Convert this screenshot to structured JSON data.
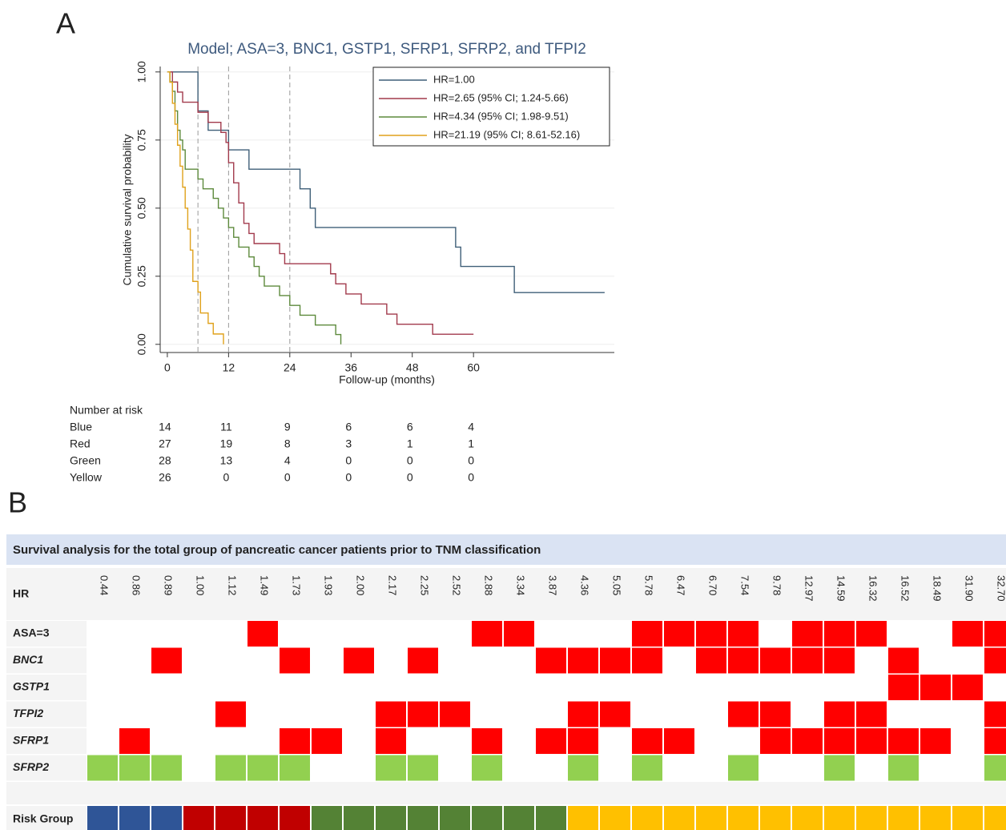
{
  "panel_labels": [
    "A",
    "B"
  ],
  "chart_data": {
    "type": "line",
    "step": true,
    "title": "Model; ASA=3, BNC1, GSTP1, SFRP1, SFRP2, and TFPI2",
    "xlabel": "Follow-up (months)",
    "ylabel": "Cumulative survival probability",
    "xlim": [
      -1.4,
      87.6
    ],
    "ylim": [
      -0.03,
      1.02
    ],
    "xticks": [
      0,
      12,
      24,
      36,
      48,
      60
    ],
    "yticks": [
      {
        "value": 0,
        "label": "0.00"
      },
      {
        "value": 0.25,
        "label": "0.25"
      },
      {
        "value": 0.5,
        "label": "0.50"
      },
      {
        "value": 0.75,
        "label": "0.75"
      },
      {
        "value": 1,
        "label": "1.00"
      }
    ],
    "reference_lines": [
      6,
      12,
      24
    ],
    "grid": true,
    "legend": "upper right",
    "series": [
      {
        "name": "HR=1.00",
        "color": "#3f5f78",
        "x": [
          0,
          6,
          8,
          12,
          16,
          26,
          28,
          29,
          56.5,
          57.5,
          68,
          85.7
        ],
        "values": [
          1,
          0.857,
          0.786,
          0.714,
          0.643,
          0.571,
          0.5,
          0.429,
          0.357,
          0.286,
          0.19,
          0.19
        ]
      },
      {
        "name": "HR=2.65 (95% CI; 1.24-5.66)",
        "color": "#a23a4c",
        "x": [
          0,
          1,
          2,
          3,
          6,
          8,
          10.5,
          11.5,
          12,
          13,
          14,
          15,
          16,
          17,
          22,
          23,
          32,
          33,
          35,
          38,
          43,
          45,
          52,
          60
        ],
        "values": [
          1,
          0.963,
          0.926,
          0.889,
          0.852,
          0.815,
          0.778,
          0.741,
          0.667,
          0.593,
          0.519,
          0.444,
          0.407,
          0.37,
          0.333,
          0.296,
          0.259,
          0.222,
          0.185,
          0.148,
          0.111,
          0.074,
          0.037,
          0.037
        ]
      },
      {
        "name": "HR=4.34 (95% CI; 1.98-9.51)",
        "color": "#5d8a3c",
        "x": [
          0,
          0.5,
          1,
          1.5,
          2,
          2.5,
          3,
          3.5,
          6,
          7,
          9,
          10,
          11,
          12,
          13,
          14,
          16,
          17,
          18,
          19,
          22,
          24,
          26,
          29,
          33,
          34
        ],
        "values": [
          1,
          0.964,
          0.929,
          0.857,
          0.786,
          0.75,
          0.714,
          0.643,
          0.607,
          0.571,
          0.536,
          0.5,
          0.464,
          0.429,
          0.393,
          0.357,
          0.321,
          0.286,
          0.25,
          0.214,
          0.179,
          0.143,
          0.107,
          0.071,
          0.036,
          0
        ]
      },
      {
        "name": "HR=21.19 (95% CI; 8.61-52.16)",
        "color": "#e0a21c",
        "x": [
          0,
          0.5,
          1,
          1.5,
          2,
          2.5,
          3,
          3.5,
          4,
          4.5,
          5,
          6,
          6.5,
          8,
          9,
          11
        ],
        "values": [
          1,
          0.962,
          0.885,
          0.808,
          0.731,
          0.654,
          0.577,
          0.5,
          0.423,
          0.346,
          0.231,
          0.192,
          0.115,
          0.077,
          0.038,
          0
        ]
      }
    ]
  },
  "risk_table": {
    "title": "Number at risk",
    "rows": [
      {
        "label": "Blue",
        "counts": [
          14,
          11,
          9,
          6,
          6,
          4
        ]
      },
      {
        "label": "Red",
        "counts": [
          27,
          19,
          8,
          3,
          1,
          1
        ]
      },
      {
        "label": "Green",
        "counts": [
          28,
          13,
          4,
          0,
          0,
          0
        ]
      },
      {
        "label": "Yellow",
        "counts": [
          26,
          0,
          0,
          0,
          0,
          0
        ]
      }
    ]
  },
  "grid_table": {
    "title": "Survival analysis for the total group of pancreatic cancer patients prior to TNM classification",
    "header_label": "HR",
    "columns": [
      "0.44",
      "0.86",
      "0.89",
      "1.00",
      "1.12",
      "1.49",
      "1.73",
      "1.93",
      "2.00",
      "2.17",
      "2.25",
      "2.52",
      "2.88",
      "3.34",
      "3.87",
      "4.36",
      "5.05",
      "5.78",
      "6.47",
      "6.70",
      "7.54",
      "9.78",
      "12.97",
      "14.59",
      "16.32",
      "16.52",
      "18.49",
      "31.90",
      "32.70"
    ],
    "rows": [
      {
        "label": "ASA=3",
        "italic": false,
        "color": "#ff0000",
        "cells": [
          0,
          0,
          0,
          0,
          0,
          1,
          0,
          0,
          0,
          0,
          0,
          0,
          1,
          1,
          0,
          0,
          0,
          1,
          1,
          1,
          1,
          0,
          1,
          1,
          1,
          0,
          0,
          1,
          1
        ]
      },
      {
        "label": "BNC1",
        "italic": true,
        "color": "#ff0000",
        "cells": [
          0,
          0,
          1,
          0,
          0,
          0,
          1,
          0,
          1,
          0,
          1,
          0,
          0,
          0,
          1,
          1,
          1,
          1,
          0,
          1,
          1,
          1,
          1,
          1,
          0,
          1,
          0,
          0,
          1
        ]
      },
      {
        "label": "GSTP1",
        "italic": true,
        "color": "#ff0000",
        "cells": [
          0,
          0,
          0,
          0,
          0,
          0,
          0,
          0,
          0,
          0,
          0,
          0,
          0,
          0,
          0,
          0,
          0,
          0,
          0,
          0,
          0,
          0,
          0,
          0,
          0,
          1,
          1,
          1,
          0
        ]
      },
      {
        "label": "TFPI2",
        "italic": true,
        "color": "#ff0000",
        "cells": [
          0,
          0,
          0,
          0,
          1,
          0,
          0,
          0,
          0,
          1,
          1,
          1,
          0,
          0,
          0,
          1,
          1,
          0,
          0,
          0,
          1,
          1,
          0,
          1,
          1,
          0,
          0,
          0,
          1
        ]
      },
      {
        "label": "SFRP1",
        "italic": true,
        "color": "#ff0000",
        "cells": [
          0,
          1,
          0,
          0,
          0,
          0,
          1,
          1,
          0,
          1,
          0,
          0,
          1,
          0,
          1,
          1,
          0,
          1,
          1,
          0,
          0,
          1,
          1,
          1,
          1,
          1,
          1,
          0,
          1
        ]
      },
      {
        "label": "SFRP2",
        "italic": true,
        "color": "#92d050",
        "cells": [
          1,
          1,
          1,
          0,
          1,
          1,
          1,
          0,
          0,
          1,
          1,
          0,
          1,
          0,
          0,
          1,
          0,
          1,
          0,
          0,
          1,
          0,
          0,
          1,
          0,
          1,
          0,
          0,
          1
        ]
      }
    ],
    "risk_row": {
      "label": "Risk Group",
      "group_colors": [
        "#2f5597",
        "#c00000",
        "#548235",
        "#ffc000"
      ],
      "groups": [
        0,
        0,
        0,
        1,
        1,
        1,
        1,
        2,
        2,
        2,
        2,
        2,
        2,
        2,
        2,
        3,
        3,
        3,
        3,
        3,
        3,
        3,
        3,
        3,
        3,
        3,
        3,
        3,
        3
      ]
    }
  }
}
